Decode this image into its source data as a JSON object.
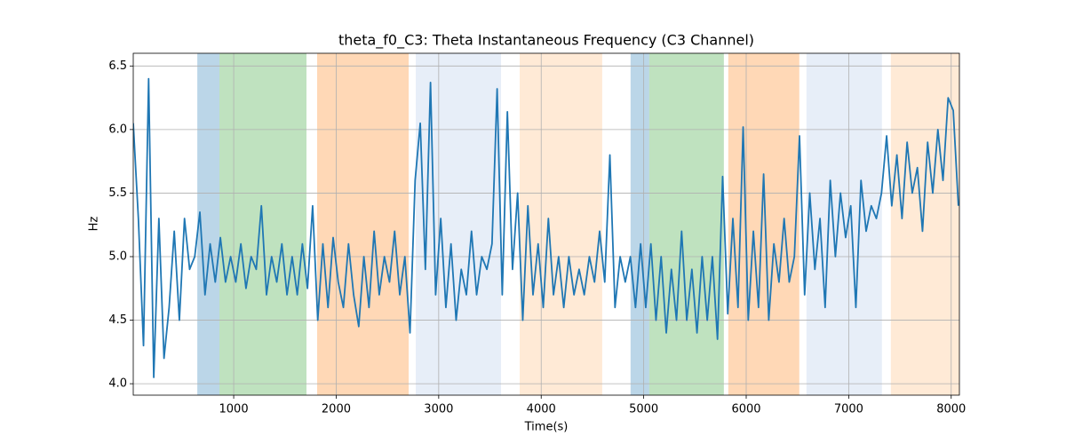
{
  "chart_data": {
    "type": "line",
    "title": "theta_f0_C3: Theta Instantaneous Frequency (C3 Channel)",
    "xlabel": "Time(s)",
    "ylabel": "Hz",
    "xlim": [
      20,
      8080
    ],
    "ylim": [
      3.91,
      6.6
    ],
    "xticks": [
      1000,
      2000,
      3000,
      4000,
      5000,
      6000,
      7000,
      8000
    ],
    "yticks": [
      {
        "value": 4,
        "label": "4.0"
      },
      4.5,
      {
        "value": 5,
        "label": "5.0"
      },
      5.5,
      {
        "value": 6,
        "label": "6.0"
      },
      6.5
    ],
    "grid": true,
    "spans": [
      {
        "x": [
          645,
          861
        ],
        "color": "#1f77b4"
      },
      {
        "x": [
          861,
          1710
        ],
        "color": "#2ca02c"
      },
      {
        "x": [
          1814,
          2707
        ],
        "color": "#ff7f0e"
      },
      {
        "x": [
          2776,
          3608
        ],
        "color": "#aec7e8"
      },
      {
        "x": [
          3790,
          4595
        ],
        "color": "#ffbb78"
      },
      {
        "x": [
          4872,
          5054
        ],
        "color": "#1f77b4"
      },
      {
        "x": [
          5054,
          5782
        ],
        "color": "#2ca02c"
      },
      {
        "x": [
          5825,
          6518
        ],
        "color": "#ff7f0e"
      },
      {
        "x": [
          6588,
          7324
        ],
        "color": "#aec7e8"
      },
      {
        "x": [
          7411,
          8080
        ],
        "color": "#ffbb78"
      }
    ],
    "x": [
      20,
      70,
      120,
      170,
      220,
      270,
      320,
      370,
      420,
      470,
      520,
      570,
      620,
      670,
      720,
      770,
      820,
      870,
      920,
      970,
      1020,
      1070,
      1120,
      1170,
      1220,
      1270,
      1320,
      1370,
      1420,
      1470,
      1520,
      1570,
      1620,
      1670,
      1720,
      1770,
      1820,
      1870,
      1920,
      1970,
      2020,
      2070,
      2120,
      2170,
      2220,
      2270,
      2320,
      2370,
      2420,
      2470,
      2520,
      2570,
      2620,
      2670,
      2720,
      2770,
      2820,
      2870,
      2920,
      2970,
      3020,
      3070,
      3120,
      3170,
      3220,
      3270,
      3320,
      3370,
      3420,
      3470,
      3520,
      3570,
      3620,
      3670,
      3720,
      3770,
      3820,
      3870,
      3920,
      3970,
      4020,
      4070,
      4120,
      4170,
      4220,
      4270,
      4320,
      4370,
      4420,
      4470,
      4520,
      4570,
      4620,
      4670,
      4720,
      4770,
      4820,
      4870,
      4920,
      4970,
      5020,
      5070,
      5120,
      5170,
      5220,
      5270,
      5320,
      5370,
      5420,
      5470,
      5520,
      5570,
      5620,
      5670,
      5720,
      5770,
      5820,
      5870,
      5920,
      5970,
      6020,
      6070,
      6120,
      6170,
      6220,
      6270,
      6320,
      6370,
      6420,
      6470,
      6520,
      6570,
      6620,
      6670,
      6720,
      6770,
      6820,
      6870,
      6920,
      6970,
      7020,
      7070,
      7120,
      7170,
      7220,
      7270,
      7320,
      7370,
      7420,
      7470,
      7520,
      7570,
      7620,
      7670,
      7720,
      7770,
      7820,
      7870,
      7920,
      7970,
      8020,
      8070
    ],
    "series": [
      {
        "color": "#1f77b4",
        "values": [
          6.05,
          5.3,
          4.3,
          6.4,
          4.05,
          5.3,
          4.2,
          4.6,
          5.2,
          4.5,
          5.3,
          4.9,
          5.0,
          5.35,
          4.7,
          5.1,
          4.8,
          5.15,
          4.8,
          5.0,
          4.8,
          5.1,
          4.75,
          5.0,
          4.9,
          5.4,
          4.7,
          5.0,
          4.8,
          5.1,
          4.7,
          5.0,
          4.7,
          5.1,
          4.75,
          5.4,
          4.5,
          5.1,
          4.6,
          5.15,
          4.8,
          4.6,
          5.1,
          4.7,
          4.45,
          5.0,
          4.6,
          5.2,
          4.7,
          5.0,
          4.8,
          5.2,
          4.7,
          5.0,
          4.4,
          5.6,
          6.05,
          4.9,
          6.37,
          4.7,
          5.3,
          4.6,
          5.1,
          4.5,
          4.9,
          4.7,
          5.2,
          4.7,
          5.0,
          4.9,
          5.1,
          6.32,
          4.7,
          6.14,
          4.9,
          5.5,
          4.5,
          5.4,
          4.7,
          5.1,
          4.6,
          5.3,
          4.7,
          5.0,
          4.6,
          5.0,
          4.7,
          4.9,
          4.7,
          5.0,
          4.8,
          5.2,
          4.8,
          5.8,
          4.6,
          5.0,
          4.8,
          5.0,
          4.6,
          5.1,
          4.6,
          5.1,
          4.5,
          5.0,
          4.4,
          4.9,
          4.5,
          5.2,
          4.5,
          4.9,
          4.4,
          5.0,
          4.5,
          5.0,
          4.35,
          5.63,
          4.55,
          5.3,
          4.6,
          6.02,
          4.5,
          5.2,
          4.6,
          5.65,
          4.5,
          5.1,
          4.8,
          5.3,
          4.8,
          5.0,
          5.95,
          4.7,
          5.5,
          4.9,
          5.3,
          4.6,
          5.6,
          5.0,
          5.5,
          5.15,
          5.4,
          4.6,
          5.6,
          5.2,
          5.4,
          5.3,
          5.5,
          5.95,
          5.4,
          5.8,
          5.3,
          5.9,
          5.5,
          5.7,
          5.2,
          5.9,
          5.5,
          6.0,
          5.6,
          6.25,
          6.15,
          5.4
        ]
      }
    ]
  }
}
